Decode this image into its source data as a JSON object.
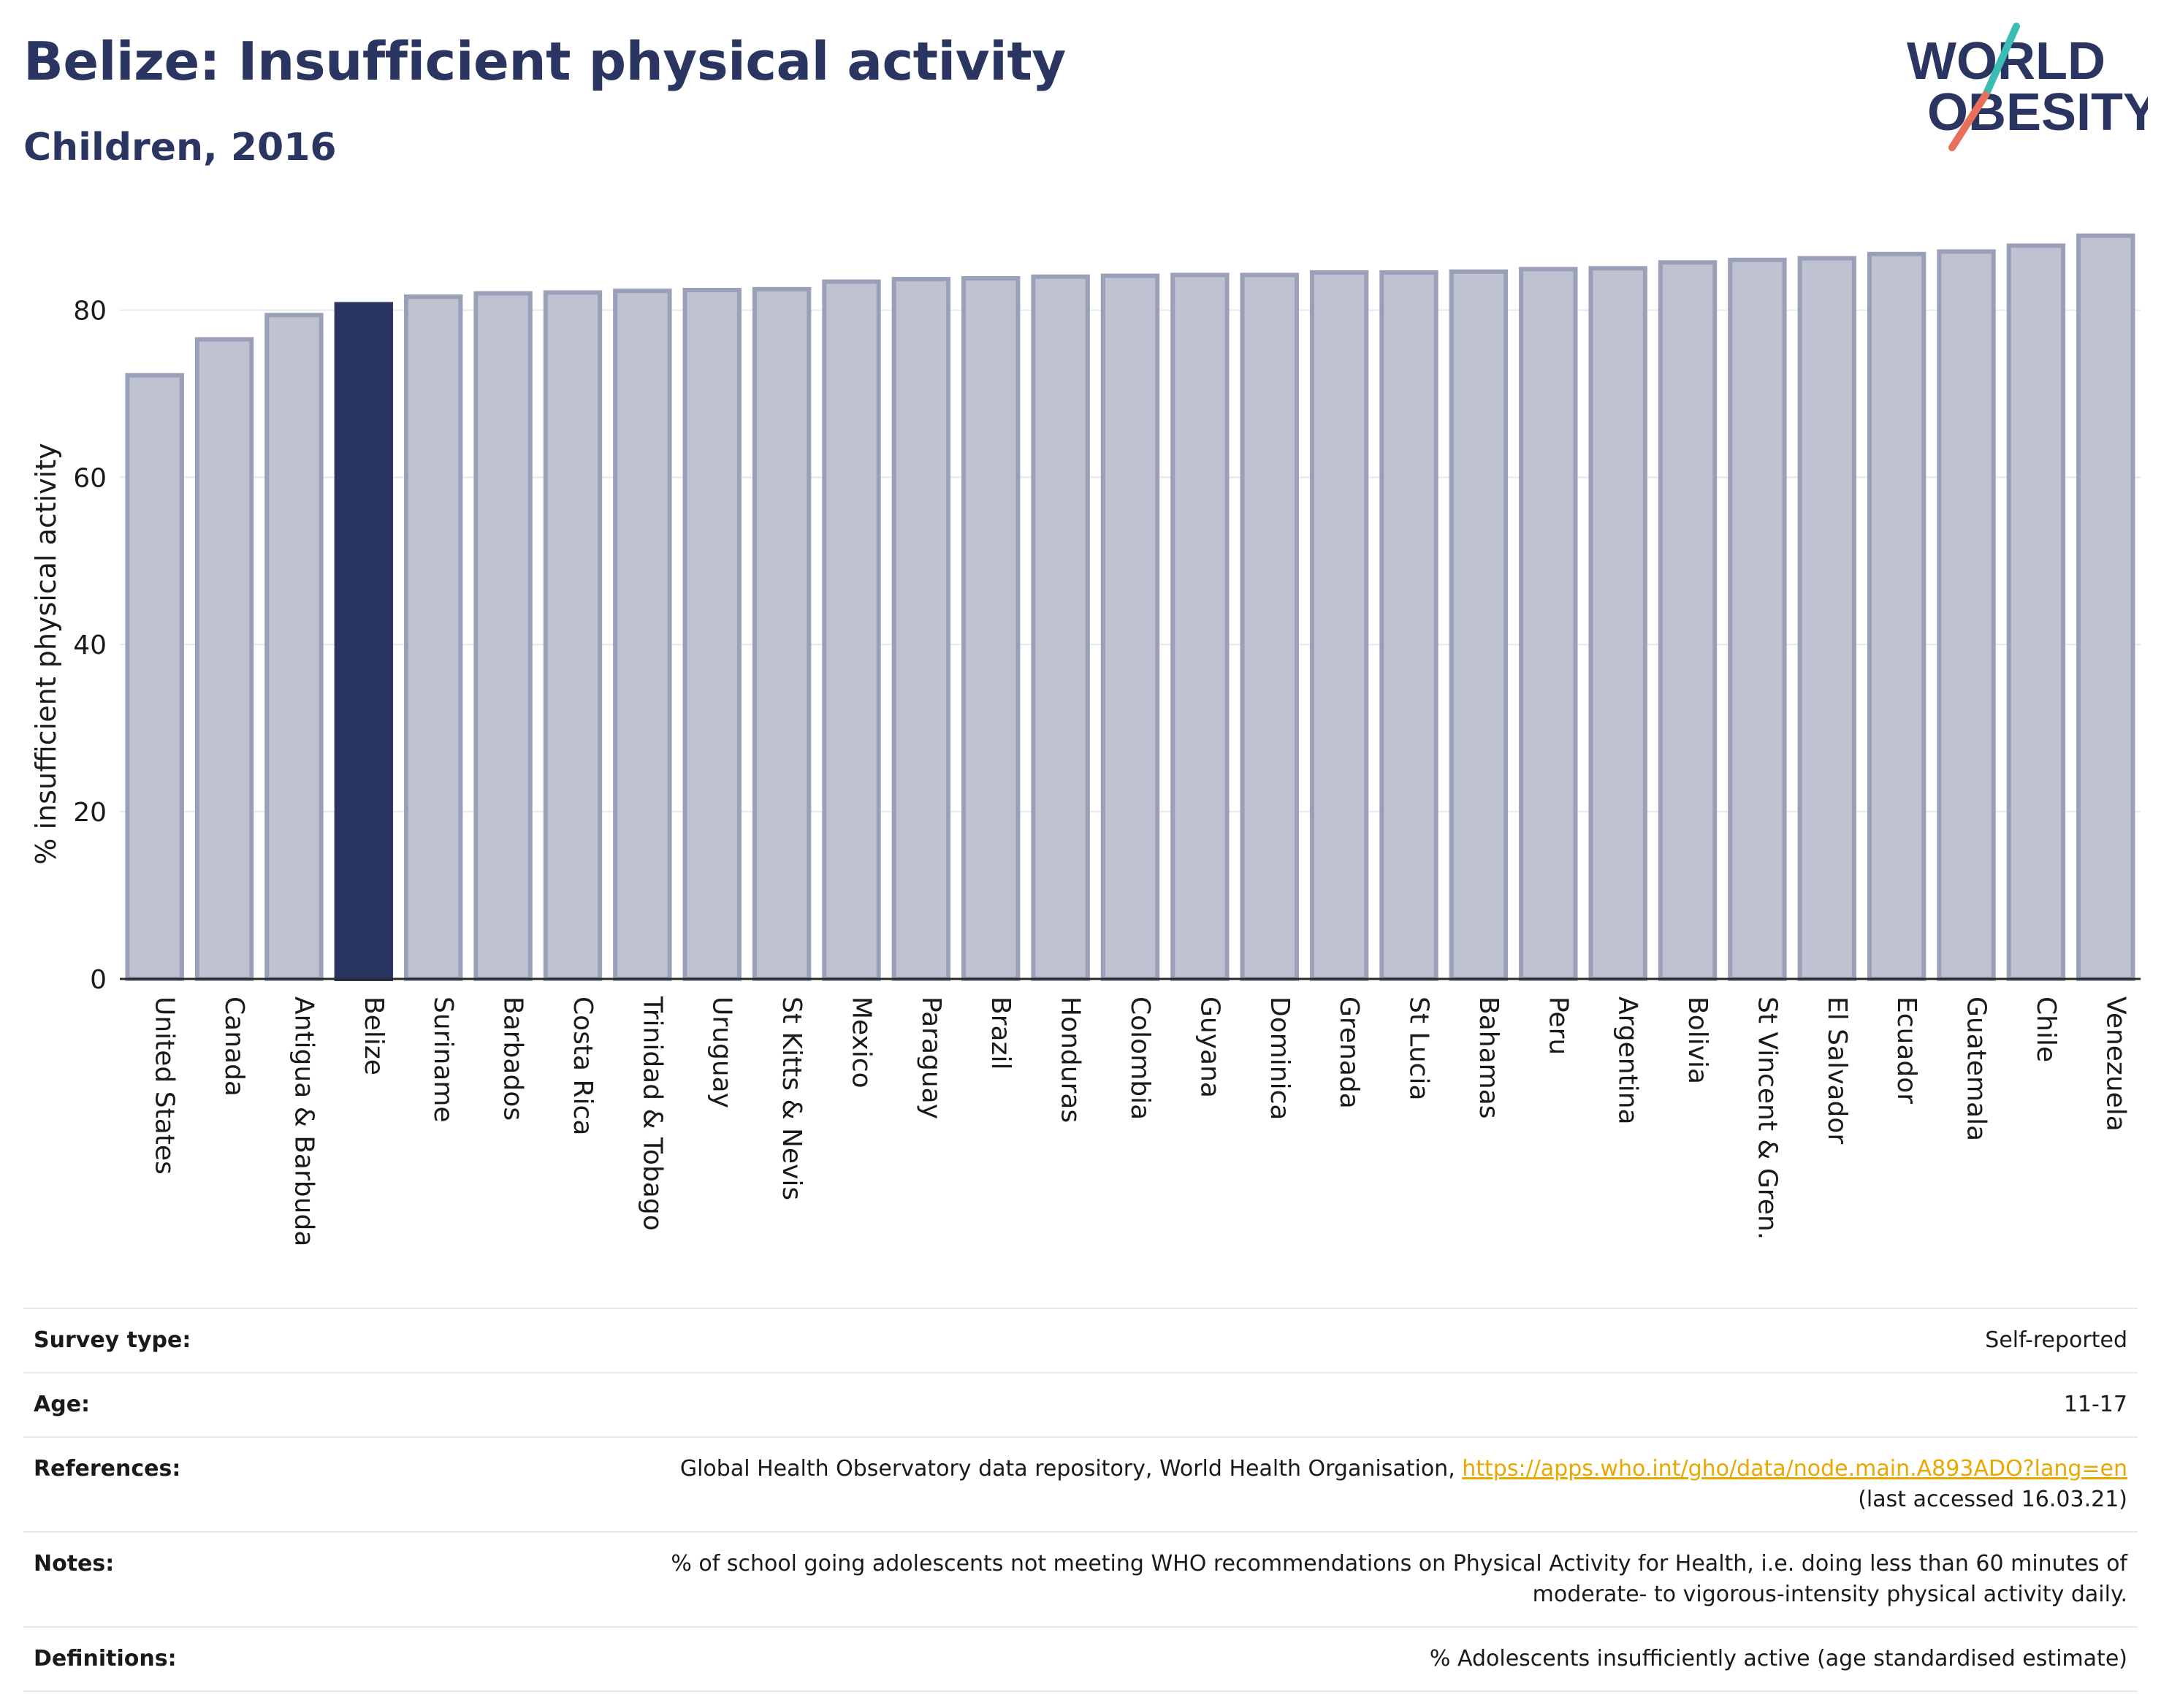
{
  "header": {
    "title": "Belize: Insufficient physical activity",
    "subtitle": "Children, 2016"
  },
  "logo": {
    "line1": "WORLD",
    "line2": "OBESITY",
    "icon": "world-obesity-logo"
  },
  "colors": {
    "highlight_bar": "#2b3561",
    "bar_fill": "#bfc2d0",
    "bar_stroke": "#9aa0b8",
    "title": "#2b3561",
    "link": "#e8a800",
    "logo_slash_teal": "#3bbcb4",
    "logo_slash_red": "#e8705a"
  },
  "chart_data": {
    "type": "bar",
    "ylabel": "% insufficient physical activity",
    "xlabel": "",
    "ylim": [
      0,
      90
    ],
    "yticks": [
      0,
      20,
      40,
      60,
      80
    ],
    "grid": true,
    "highlight": "Belize",
    "categories": [
      "United States",
      "Canada",
      "Antigua & Barbuda",
      "Belize",
      "Suriname",
      "Barbados",
      "Costa Rica",
      "Trinidad & Tobago",
      "Uruguay",
      "St Kitts & Nevis",
      "Mexico",
      "Paraguay",
      "Brazil",
      "Honduras",
      "Colombia",
      "Guyana",
      "Dominica",
      "Grenada",
      "St Lucia",
      "Bahamas",
      "Peru",
      "Argentina",
      "Bolivia",
      "St Vincent & Gren.",
      "El Salvador",
      "Ecuador",
      "Guatemala",
      "Chile",
      "Venezuela"
    ],
    "values": [
      72.2,
      76.5,
      79.4,
      80.7,
      81.6,
      82.0,
      82.1,
      82.3,
      82.4,
      82.5,
      83.4,
      83.7,
      83.8,
      84.0,
      84.1,
      84.2,
      84.2,
      84.5,
      84.5,
      84.6,
      84.9,
      85.0,
      85.7,
      86.0,
      86.2,
      86.7,
      87.0,
      87.7,
      88.9
    ]
  },
  "info": {
    "survey_type_label": "Survey type:",
    "survey_type_value": "Self-reported",
    "age_label": "Age:",
    "age_value": "11-17",
    "references_label": "References:",
    "references_text": "Global Health Observatory data repository, World Health Organisation, ",
    "references_link": "https://apps.who.int/gho/data/node.main.A893ADO?lang=en",
    "references_accessed": "(last accessed 16.03.21)",
    "notes_label": "Notes:",
    "notes_line1": "% of school going adolescents not meeting WHO recommendations on Physical Activity for Health, i.e. doing less than 60 minutes of",
    "notes_line2": "moderate- to vigorous-intensity physical activity daily.",
    "definitions_label": "Definitions:",
    "definitions_value": "% Adolescents insufficiently active (age standardised estimate)"
  }
}
